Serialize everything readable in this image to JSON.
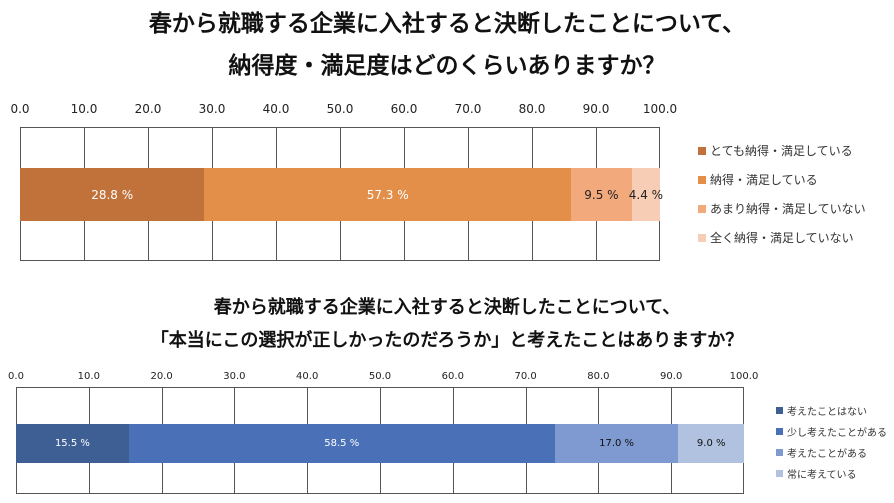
{
  "chart_data": [
    {
      "type": "bar",
      "orientation": "horizontal",
      "stacked": true,
      "title_lines": [
        "春から就職する企業に入社すると決断したことについて、",
        "納得度・満足度はどのくらいありますか？"
      ],
      "xlim": [
        0,
        100
      ],
      "ticks": [
        "0.0",
        "10.0",
        "20.0",
        "30.0",
        "40.0",
        "50.0",
        "60.0",
        "70.0",
        "80.0",
        "90.0",
        "100.0"
      ],
      "grid": true,
      "legend_position": "right",
      "series": [
        {
          "name": "とても納得・満足している",
          "value": 28.8,
          "label": "28.8 %",
          "color": "#c0723a",
          "label_color": "#ffffff"
        },
        {
          "name": "納得・満足している",
          "value": 57.3,
          "label": "57.3 %",
          "color": "#e48f49",
          "label_color": "#ffffff"
        },
        {
          "name": "あまり納得・満足していない",
          "value": 9.5,
          "label": "9.5 %",
          "color": "#f2aa7d",
          "label_color": "#222222"
        },
        {
          "name": "全く納得・満足していない",
          "value": 4.4,
          "label": "4.4 %",
          "color": "#f8cdb5",
          "label_color": "#222222"
        }
      ]
    },
    {
      "type": "bar",
      "orientation": "horizontal",
      "stacked": true,
      "title_lines": [
        "春から就職する企業に入社すると決断したことについて、",
        "「本当にこの選択が正しかったのだろうか」と考えたことはありますか？"
      ],
      "xlim": [
        0,
        100
      ],
      "ticks": [
        "0.0",
        "10.0",
        "20.0",
        "30.0",
        "40.0",
        "50.0",
        "60.0",
        "70.0",
        "80.0",
        "90.0",
        "100.0"
      ],
      "grid": true,
      "legend_position": "right",
      "series": [
        {
          "name": "考えたことはない",
          "value": 15.5,
          "label": "15.5 %",
          "color": "#3e5f94",
          "label_color": "#ffffff"
        },
        {
          "name": "少し考えたことがある",
          "value": 58.5,
          "label": "58.5 %",
          "color": "#4a70b8",
          "label_color": "#ffffff"
        },
        {
          "name": "考えたことがある",
          "value": 17.0,
          "label": "17.0 %",
          "color": "#7e9ad0",
          "label_color": "#111111"
        },
        {
          "name": "常に考えている",
          "value": 9.0,
          "label": "9.0 %",
          "color": "#b1c1e0",
          "label_color": "#111111"
        }
      ]
    }
  ]
}
